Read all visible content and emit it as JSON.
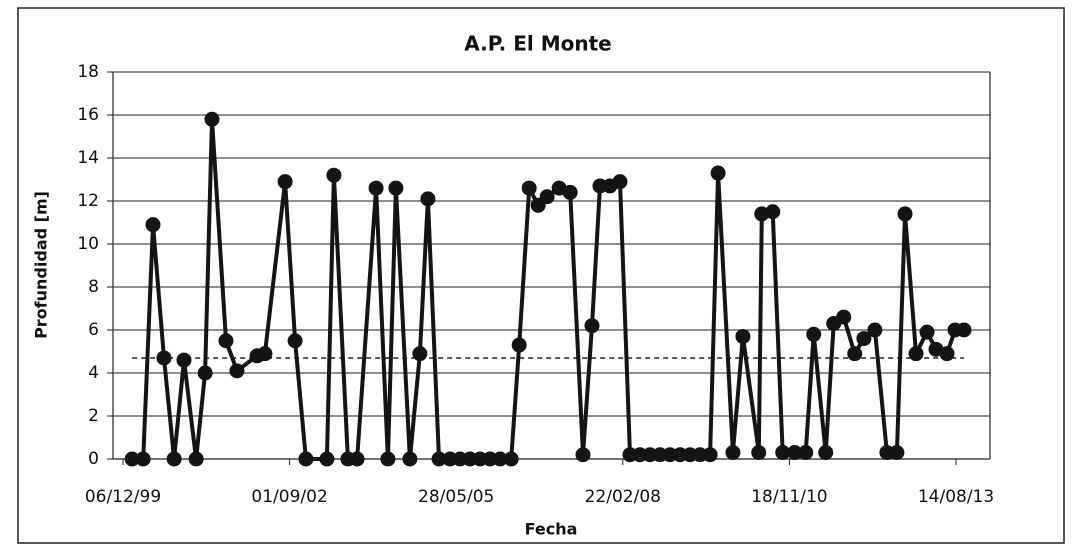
{
  "chart_data": {
    "type": "line",
    "title": "A.P. El Monte",
    "x_label": "Fecha",
    "y_label": "Profundidad [m]",
    "color": "#141414",
    "marker": "circle",
    "grid": true,
    "reference_line": 4.7,
    "reference_line_style": "dashed",
    "xlim": [
      "1999-10-07",
      "2014-03-06"
    ],
    "xticks": [
      {
        "value": "1999-12-06",
        "label": "06/12/99"
      },
      {
        "value": "2002-09-01",
        "label": "01/09/02"
      },
      {
        "value": "2005-05-28",
        "label": "28/05/05"
      },
      {
        "value": "2008-02-22",
        "label": "22/02/08"
      },
      {
        "value": "2010-11-18",
        "label": "18/11/10"
      },
      {
        "value": "2013-08-14",
        "label": "14/08/13"
      }
    ],
    "ylim": [
      0,
      18
    ],
    "yticks": [
      0,
      2,
      4,
      6,
      8,
      10,
      12,
      14,
      16,
      18
    ],
    "x": [
      "2000-01-30",
      "2000-04-05",
      "2000-06-03",
      "2000-08-08",
      "2000-10-08",
      "2000-12-06",
      "2001-02-17",
      "2001-04-12",
      "2001-05-23",
      "2001-08-15",
      "2001-10-20",
      "2002-02-18",
      "2002-04-06",
      "2002-08-05",
      "2002-10-04",
      "2002-12-08",
      "2003-04-13",
      "2003-05-25",
      "2003-08-17",
      "2003-10-11",
      "2004-02-02",
      "2004-04-13",
      "2004-05-31",
      "2004-08-23",
      "2004-10-22",
      "2004-12-09",
      "2005-02-14",
      "2005-04-21",
      "2005-06-20",
      "2005-08-19",
      "2005-10-18",
      "2005-12-17",
      "2006-02-16",
      "2006-04-23",
      "2006-06-10",
      "2006-08-09",
      "2006-10-02",
      "2006-11-25",
      "2007-02-05",
      "2007-04-12",
      "2007-06-28",
      "2007-08-21",
      "2007-10-08",
      "2007-12-07",
      "2008-02-05",
      "2008-04-05",
      "2008-06-04",
      "2008-08-03",
      "2008-10-02",
      "2008-12-01",
      "2009-01-31",
      "2009-04-01",
      "2009-05-31",
      "2009-07-30",
      "2009-09-16",
      "2009-12-14",
      "2010-02-12",
      "2010-05-18",
      "2010-06-05",
      "2010-08-10",
      "2010-10-09",
      "2010-12-20",
      "2011-02-24",
      "2011-04-13",
      "2011-06-24",
      "2011-08-11",
      "2011-10-10",
      "2011-12-15",
      "2012-02-08",
      "2012-04-14",
      "2012-06-25",
      "2012-08-24",
      "2012-10-12",
      "2012-12-17",
      "2013-02-21",
      "2013-04-16",
      "2013-06-21",
      "2013-08-08",
      "2013-10-01"
    ],
    "values": [
      0,
      0,
      10.9,
      4.7,
      0,
      4.6,
      0,
      4.0,
      15.8,
      5.5,
      4.1,
      4.8,
      4.9,
      12.9,
      5.5,
      0,
      0,
      13.2,
      0,
      0,
      12.6,
      0,
      12.6,
      0,
      4.9,
      12.1,
      0,
      0,
      0,
      0,
      0,
      0,
      0,
      0,
      5.3,
      12.6,
      11.8,
      12.2,
      12.6,
      12.4,
      0.2,
      6.2,
      12.7,
      12.7,
      12.9,
      0.2,
      0.2,
      0.2,
      0.2,
      0.2,
      0.2,
      0.2,
      0.2,
      0.2,
      13.3,
      0.3,
      5.7,
      0.3,
      11.4,
      11.5,
      0.3,
      0.3,
      0.3,
      5.8,
      0.3,
      6.3,
      6.6,
      4.9,
      5.6,
      6.0,
      0.3,
      0.3,
      11.4,
      4.9,
      5.9,
      5.1,
      4.9,
      6.0,
      6.0
    ]
  }
}
